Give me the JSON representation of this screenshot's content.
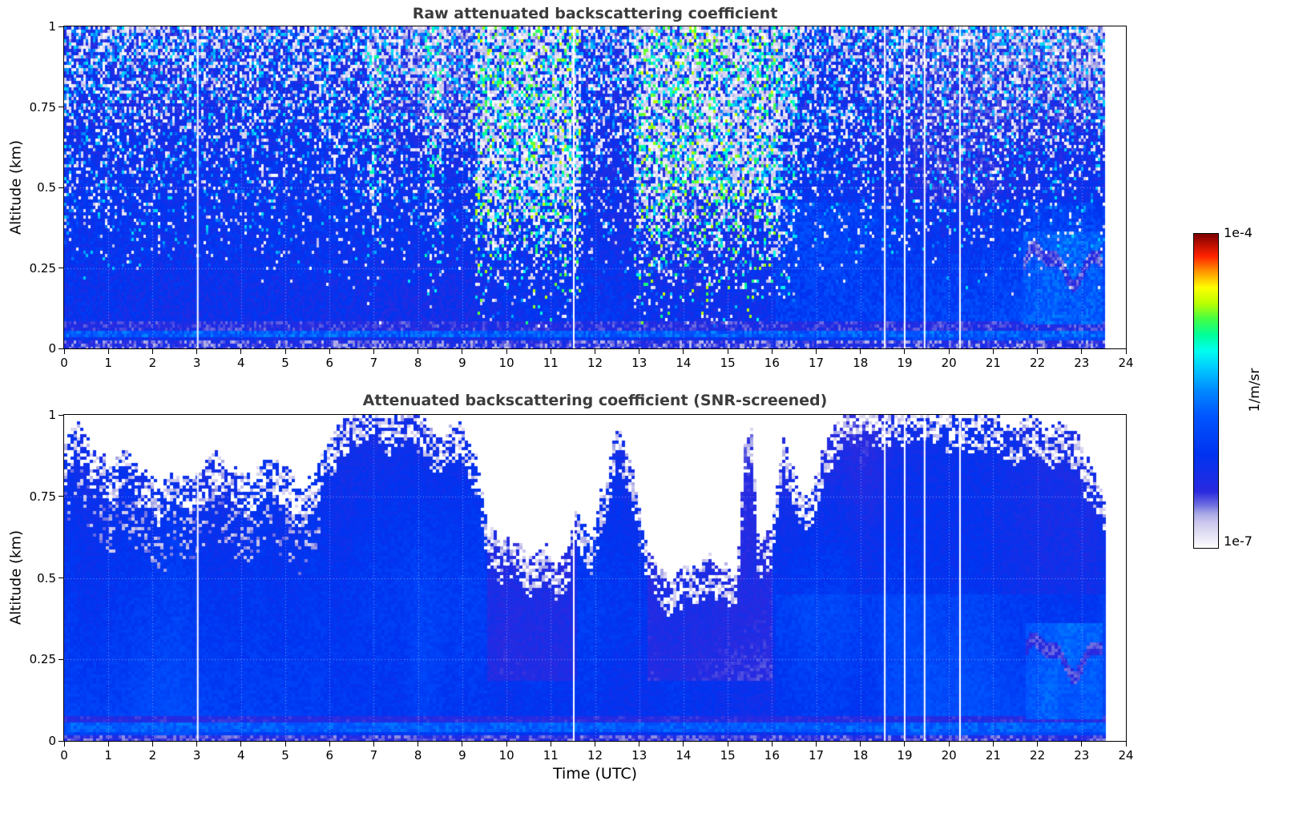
{
  "figure": {
    "background": "#ffffff"
  },
  "colorbar": {
    "unit_label": "1/m/sr",
    "max_label": "1e-4",
    "min_label": "1e-7",
    "log_min": -7,
    "log_max": -4,
    "stops": [
      [
        0,
        "#ffffff"
      ],
      [
        0.04,
        "#e6e4f6"
      ],
      [
        0.08,
        "#cdc9ee"
      ],
      [
        0.11,
        "#a9a9e6"
      ],
      [
        0.14,
        "#6a6ae0"
      ],
      [
        0.18,
        "#2a2ae0"
      ],
      [
        0.3,
        "#0033f0"
      ],
      [
        0.42,
        "#0055ff"
      ],
      [
        0.5,
        "#0088ff"
      ],
      [
        0.57,
        "#00c8ff"
      ],
      [
        0.63,
        "#00ffee"
      ],
      [
        0.68,
        "#00ff99"
      ],
      [
        0.73,
        "#44ff44"
      ],
      [
        0.78,
        "#bbff00"
      ],
      [
        0.83,
        "#ffff00"
      ],
      [
        0.88,
        "#ff9900"
      ],
      [
        0.93,
        "#ff2200"
      ],
      [
        1,
        "#7f0000"
      ]
    ]
  },
  "chart_data": [
    {
      "type": "heatmap",
      "title": "Raw attenuated backscattering coefficient",
      "xlabel": "",
      "ylabel": "Altitude (km)",
      "x_range": [
        0,
        24
      ],
      "y_range": [
        0,
        1
      ],
      "x_ticks": [
        0,
        1,
        2,
        3,
        4,
        5,
        6,
        7,
        8,
        9,
        10,
        11,
        12,
        13,
        14,
        15,
        16,
        17,
        18,
        19,
        20,
        21,
        22,
        23,
        24
      ],
      "y_ticks": [
        0,
        0.25,
        0.5,
        0.75,
        1
      ],
      "value_unit": "1/m/sr",
      "value_scale": "log10",
      "value_min": 1e-07,
      "value_max": 0.0001,
      "grid": true,
      "features": {
        "background_log10": -6.2,
        "data_end_time": 23.55,
        "data_gap_times": [
          3.02,
          11.52,
          18.55,
          19.0,
          19.45,
          20.25
        ],
        "noise_speckle_above_km": 0.16,
        "bright_noise_columns": [
          [
            9.3,
            11.7,
            1
          ],
          [
            12.9,
            16.2,
            1
          ],
          [
            8.15,
            8.6,
            0.55
          ],
          [
            6.85,
            7.15,
            0.45
          ],
          [
            16.2,
            16.55,
            0.5
          ]
        ],
        "surface_bright_band_km": [
          0.03,
          0.058
        ],
        "clear_after_utc": 16.1,
        "late_aerosol_layer": {
          "time": [
            21.7,
            23.5
          ],
          "alt": [
            0.07,
            0.36
          ],
          "log10": -5.7
        }
      }
    },
    {
      "type": "heatmap",
      "title": "Attenuated backscattering coefficient (SNR-screened)",
      "xlabel": "Time (UTC)",
      "ylabel": "Altitude (km)",
      "x_range": [
        0,
        24
      ],
      "y_range": [
        0,
        1
      ],
      "x_ticks": [
        0,
        1,
        2,
        3,
        4,
        5,
        6,
        7,
        8,
        9,
        10,
        11,
        12,
        13,
        14,
        15,
        16,
        17,
        18,
        19,
        20,
        21,
        22,
        23,
        24
      ],
      "y_ticks": [
        0,
        0.25,
        0.5,
        0.75,
        1
      ],
      "value_unit": "1/m/sr",
      "value_scale": "log10",
      "value_min": 1e-07,
      "value_max": 0.0001,
      "grid": true,
      "features": {
        "screened_white": true,
        "data_end_time": 23.55,
        "data_gap_times": [
          3.02,
          11.52,
          18.55,
          19.0,
          19.45,
          20.25
        ],
        "clear_after_utc": 16.1,
        "surface_bright_band_km": [
          0.03,
          0.058
        ],
        "late_aerosol_layer": {
          "time": [
            21.7,
            23.5
          ],
          "alt": [
            0.07,
            0.36
          ],
          "log10": -5.7
        },
        "attenuated_regions": [
          [
            9.6,
            11.6
          ],
          [
            13.2,
            16.0
          ]
        ],
        "lavender_speckle_time": [
          0,
          5.8
        ],
        "mask_boundary_points": [
          [
            0,
            0.88
          ],
          [
            0.3,
            0.97
          ],
          [
            0.6,
            0.9
          ],
          [
            1,
            0.82
          ],
          [
            1.4,
            0.88
          ],
          [
            1.8,
            0.8
          ],
          [
            2.2,
            0.76
          ],
          [
            2.6,
            0.82
          ],
          [
            3,
            0.78
          ],
          [
            3.4,
            0.85
          ],
          [
            3.8,
            0.8
          ],
          [
            4.2,
            0.78
          ],
          [
            4.6,
            0.85
          ],
          [
            5,
            0.8
          ],
          [
            5.4,
            0.75
          ],
          [
            5.8,
            0.85
          ],
          [
            6.2,
            0.95
          ],
          [
            6.6,
            1.0
          ],
          [
            7,
            1.02
          ],
          [
            7.4,
            0.98
          ],
          [
            7.8,
            1.0
          ],
          [
            8.2,
            0.95
          ],
          [
            8.6,
            0.9
          ],
          [
            9,
            0.96
          ],
          [
            9.3,
            0.85
          ],
          [
            9.6,
            0.62
          ],
          [
            9.9,
            0.58
          ],
          [
            10.2,
            0.62
          ],
          [
            10.5,
            0.54
          ],
          [
            10.8,
            0.6
          ],
          [
            11.1,
            0.52
          ],
          [
            11.4,
            0.58
          ],
          [
            11.6,
            0.68
          ],
          [
            11.9,
            0.6
          ],
          [
            12.2,
            0.75
          ],
          [
            12.5,
            0.95
          ],
          [
            12.8,
            0.85
          ],
          [
            13.1,
            0.62
          ],
          [
            13.4,
            0.52
          ],
          [
            13.7,
            0.48
          ],
          [
            14,
            0.52
          ],
          [
            14.3,
            0.5
          ],
          [
            14.6,
            0.55
          ],
          [
            14.9,
            0.5
          ],
          [
            15.2,
            0.52
          ],
          [
            15.4,
            0.88
          ],
          [
            15.55,
            0.92
          ],
          [
            15.7,
            0.6
          ],
          [
            16,
            0.62
          ],
          [
            16.25,
            0.9
          ],
          [
            16.5,
            0.8
          ],
          [
            16.8,
            0.72
          ],
          [
            17.1,
            0.85
          ],
          [
            17.4,
            0.95
          ],
          [
            17.7,
            1.0
          ],
          [
            18,
            1.02
          ],
          [
            18.5,
            1.0
          ],
          [
            19,
            1.0
          ],
          [
            19.5,
            1.02
          ],
          [
            20,
            1.0
          ],
          [
            20.5,
            0.97
          ],
          [
            21,
            1.0
          ],
          [
            21.4,
            0.93
          ],
          [
            21.8,
            0.97
          ],
          [
            22.2,
            0.95
          ],
          [
            22.6,
            0.97
          ],
          [
            23,
            0.88
          ],
          [
            23.3,
            0.8
          ],
          [
            23.55,
            0.72
          ]
        ]
      }
    }
  ]
}
